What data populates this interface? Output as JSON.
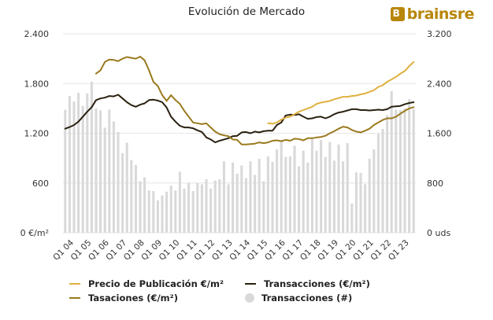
{
  "title": "Evolución de Mercado",
  "logo": {
    "text": "brainsre",
    "mark_icon": "brainsre-logo-icon"
  },
  "colors": {
    "precio": "#e0b040",
    "tasaciones": "#9a7a1e",
    "transacciones_m2": "#2a2010",
    "transacciones_num": "#d9d9d9",
    "grid": "#e6e6e6"
  },
  "legend": [
    {
      "key": "precio",
      "label": "Precio de Publicación €/m²"
    },
    {
      "key": "transacciones_m2",
      "label": "Transacciones (€/m²)"
    },
    {
      "key": "tasaciones",
      "label": "Tasaciones (€/m²)"
    },
    {
      "key": "transacciones_num",
      "label": "Transacciones (#)"
    }
  ],
  "chart_data": {
    "type": "line",
    "title": "Evolución de Mercado",
    "x": [
      "Q1 04",
      "Q2 04",
      "Q3 04",
      "Q4 04",
      "Q1 05",
      "Q2 05",
      "Q3 05",
      "Q4 05",
      "Q1 06",
      "Q2 06",
      "Q3 06",
      "Q4 06",
      "Q1 07",
      "Q2 07",
      "Q3 07",
      "Q4 07",
      "Q1 08",
      "Q2 08",
      "Q3 08",
      "Q4 08",
      "Q1 09",
      "Q2 09",
      "Q3 09",
      "Q4 09",
      "Q1 10",
      "Q2 10",
      "Q3 10",
      "Q4 10",
      "Q1 11",
      "Q2 11",
      "Q3 11",
      "Q4 11",
      "Q1 12",
      "Q2 12",
      "Q3 12",
      "Q4 12",
      "Q1 13",
      "Q2 13",
      "Q3 13",
      "Q4 13",
      "Q1 14",
      "Q2 14",
      "Q3 14",
      "Q4 14",
      "Q1 15",
      "Q2 15",
      "Q3 15",
      "Q4 15",
      "Q1 16",
      "Q2 16",
      "Q3 16",
      "Q4 16",
      "Q1 17",
      "Q2 17",
      "Q3 17",
      "Q4 17",
      "Q1 18",
      "Q2 18",
      "Q3 18",
      "Q4 18",
      "Q1 19",
      "Q2 19",
      "Q3 19",
      "Q4 19",
      "Q1 20",
      "Q2 20",
      "Q3 20",
      "Q4 20",
      "Q1 21",
      "Q2 21",
      "Q3 21",
      "Q4 21",
      "Q1 22",
      "Q2 22",
      "Q3 22",
      "Q4 22",
      "Q1 23",
      "Q2 23",
      "Q3 23",
      "Q4 23"
    ],
    "x_tick_labels": [
      "Q1 04",
      "Q1 05",
      "Q1 06",
      "Q1 07",
      "Q1 08",
      "Q1 09",
      "Q1 10",
      "Q1 11",
      "Q1 12",
      "Q1 13",
      "Q1 14",
      "Q1 15",
      "Q1 16",
      "Q1 17",
      "Q1 18",
      "Q1 19",
      "Q1 20",
      "Q1 21",
      "Q1 22",
      "Q1 23"
    ],
    "y_left": {
      "label": "€/m²",
      "ticks": [
        "0 €/m²",
        "600",
        "1.200",
        "1.800",
        "2.400"
      ],
      "range": [
        0,
        2400
      ]
    },
    "y_right": {
      "label": "uds",
      "ticks": [
        "0 uds",
        "800",
        "1.600",
        "2.400",
        "3.200"
      ],
      "range": [
        0,
        3200
      ]
    },
    "series": [
      {
        "name": "Transacciones (#)",
        "type": "bar",
        "axis": "right",
        "values": [
          1980,
          2200,
          2110,
          2250,
          2040,
          2240,
          2430,
          2000,
          1970,
          1690,
          1980,
          1790,
          1620,
          1280,
          1450,
          1170,
          1090,
          830,
          890,
          680,
          670,
          520,
          600,
          660,
          760,
          680,
          980,
          710,
          800,
          670,
          800,
          780,
          860,
          710,
          840,
          860,
          1150,
          780,
          1130,
          950,
          1080,
          880,
          1150,
          930,
          1190,
          830,
          1230,
          1140,
          1340,
          1470,
          1220,
          1230,
          1400,
          1070,
          1320,
          1130,
          1530,
          1320,
          1490,
          1220,
          1460,
          1160,
          1420,
          1150,
          1440,
          470,
          970,
          960,
          780,
          1190,
          1340,
          1590,
          1670,
          1890,
          2280,
          1980,
          1970,
          2000,
          2150,
          1990
        ]
      },
      {
        "name": "Transacciones (€/m²)",
        "type": "line",
        "axis": "left",
        "values": [
          1255,
          1275,
          1300,
          1340,
          1400,
          1460,
          1515,
          1600,
          1620,
          1630,
          1650,
          1645,
          1665,
          1620,
          1575,
          1540,
          1520,
          1545,
          1560,
          1600,
          1605,
          1595,
          1575,
          1510,
          1400,
          1340,
          1290,
          1270,
          1270,
          1260,
          1235,
          1215,
          1150,
          1125,
          1090,
          1110,
          1125,
          1140,
          1165,
          1170,
          1210,
          1215,
          1200,
          1220,
          1210,
          1225,
          1230,
          1230,
          1300,
          1330,
          1415,
          1425,
          1420,
          1430,
          1400,
          1375,
          1380,
          1395,
          1400,
          1380,
          1400,
          1430,
          1450,
          1460,
          1475,
          1490,
          1490,
          1480,
          1480,
          1475,
          1480,
          1485,
          1480,
          1490,
          1520,
          1525,
          1530,
          1550,
          1565,
          1575
        ]
      },
      {
        "name": "Tasaciones (€/m²)",
        "type": "line",
        "axis": "left",
        "values": [
          null,
          null,
          null,
          null,
          null,
          null,
          null,
          1920,
          1960,
          2060,
          2090,
          2085,
          2070,
          2100,
          2120,
          2110,
          2100,
          2125,
          2080,
          1960,
          1820,
          1770,
          1660,
          1590,
          1660,
          1600,
          1555,
          1470,
          1400,
          1330,
          1320,
          1310,
          1320,
          1270,
          1220,
          1190,
          1175,
          1165,
          1125,
          1120,
          1065,
          1065,
          1070,
          1075,
          1090,
          1080,
          1090,
          1110,
          1115,
          1105,
          1120,
          1110,
          1135,
          1130,
          1115,
          1140,
          1140,
          1150,
          1155,
          1170,
          1200,
          1225,
          1255,
          1280,
          1270,
          1240,
          1220,
          1210,
          1230,
          1255,
          1300,
          1330,
          1360,
          1380,
          1380,
          1400,
          1435,
          1470,
          1500,
          1515
        ]
      },
      {
        "name": "Precio de Publicación €/m²",
        "type": "line",
        "axis": "left",
        "values": [
          null,
          null,
          null,
          null,
          null,
          null,
          null,
          null,
          null,
          null,
          null,
          null,
          null,
          null,
          null,
          null,
          null,
          null,
          null,
          null,
          null,
          null,
          null,
          null,
          null,
          null,
          null,
          null,
          null,
          null,
          null,
          null,
          null,
          null,
          null,
          null,
          null,
          null,
          null,
          null,
          null,
          null,
          null,
          null,
          null,
          null,
          1320,
          1315,
          1330,
          1365,
          1390,
          1400,
          1430,
          1460,
          1480,
          1500,
          1520,
          1555,
          1570,
          1580,
          1590,
          1610,
          1625,
          1640,
          1640,
          1650,
          1655,
          1670,
          1680,
          1700,
          1720,
          1760,
          1780,
          1820,
          1850,
          1880,
          1920,
          1950,
          2010,
          2060
        ]
      }
    ]
  }
}
